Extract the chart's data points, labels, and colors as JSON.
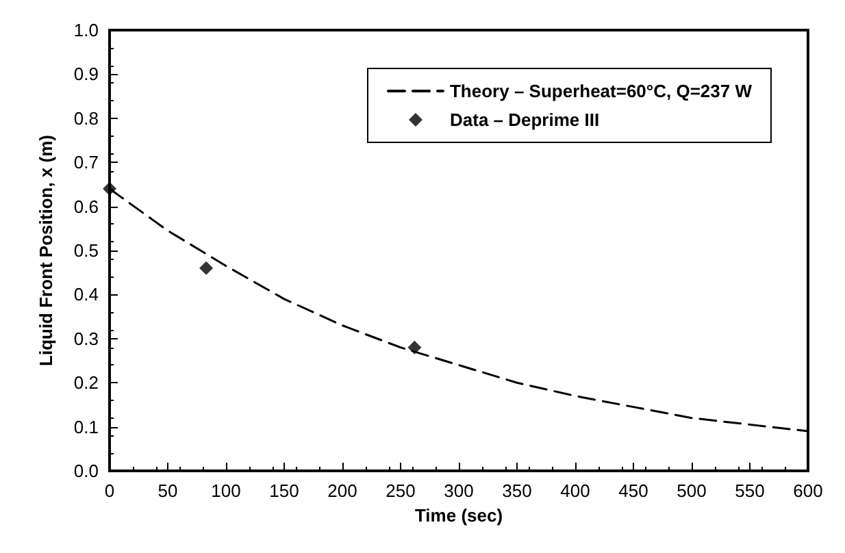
{
  "chart_data": {
    "type": "line",
    "xlabel": "Time (sec)",
    "ylabel": "Liquid Front Position, x (m)",
    "xlim": [
      0,
      600
    ],
    "xticks": [
      0,
      50,
      100,
      150,
      200,
      250,
      300,
      350,
      400,
      450,
      500,
      550,
      600
    ],
    "ylim": [
      0,
      1
    ],
    "yticks": [
      {
        "value": 0,
        "label": "0.0"
      },
      {
        "value": 0.1,
        "label": "0.1"
      },
      {
        "value": 0.2,
        "label": "0.2"
      },
      {
        "value": 0.3,
        "label": "0.3"
      },
      {
        "value": 0.4,
        "label": "0.4"
      },
      {
        "value": 0.5,
        "label": "0.5"
      },
      {
        "value": 0.6,
        "label": "0.6"
      },
      {
        "value": 0.7,
        "label": "0.7"
      },
      {
        "value": 0.8,
        "label": "0.8"
      },
      {
        "value": 0.9,
        "label": "0.9"
      },
      {
        "value": 1,
        "label": "1.0"
      }
    ],
    "grid": false,
    "legend": "top right",
    "series": [
      {
        "name": "Theory – Superheat=60°C, Q=237 W",
        "color": "#000000",
        "line_style": "dashed",
        "marker": "none",
        "x": [
          0,
          50,
          100,
          150,
          200,
          250,
          300,
          350,
          400,
          450,
          500,
          550,
          600
        ],
        "values": [
          0.64,
          0.545,
          0.465,
          0.39,
          0.33,
          0.28,
          0.24,
          0.2,
          0.17,
          0.145,
          0.12,
          0.105,
          0.09
        ]
      },
      {
        "name": "Data – Deprime III",
        "type": "scatter",
        "color": "#000000",
        "marker": "diamond",
        "x": [
          0,
          83,
          262
        ],
        "values": [
          0.64,
          0.46,
          0.28
        ]
      }
    ]
  }
}
